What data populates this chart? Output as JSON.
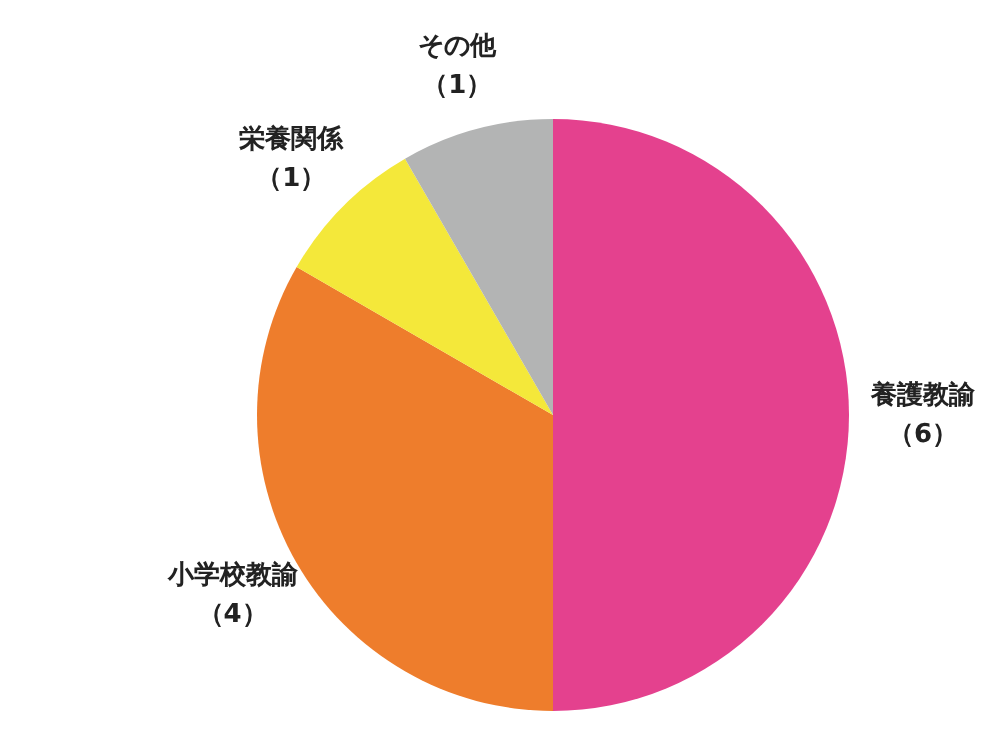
{
  "chart_data": {
    "type": "pie",
    "categories": [
      "養護教諭",
      "小学校教諭",
      "栄養関係",
      "その他"
    ],
    "values": [
      6,
      4,
      1,
      1
    ],
    "colors": [
      "#e4418e",
      "#ee7d2c",
      "#f4e83a",
      "#b3b4b4"
    ],
    "value_labels": [
      "（6）",
      "（4）",
      "（1）",
      "（1）"
    ]
  }
}
